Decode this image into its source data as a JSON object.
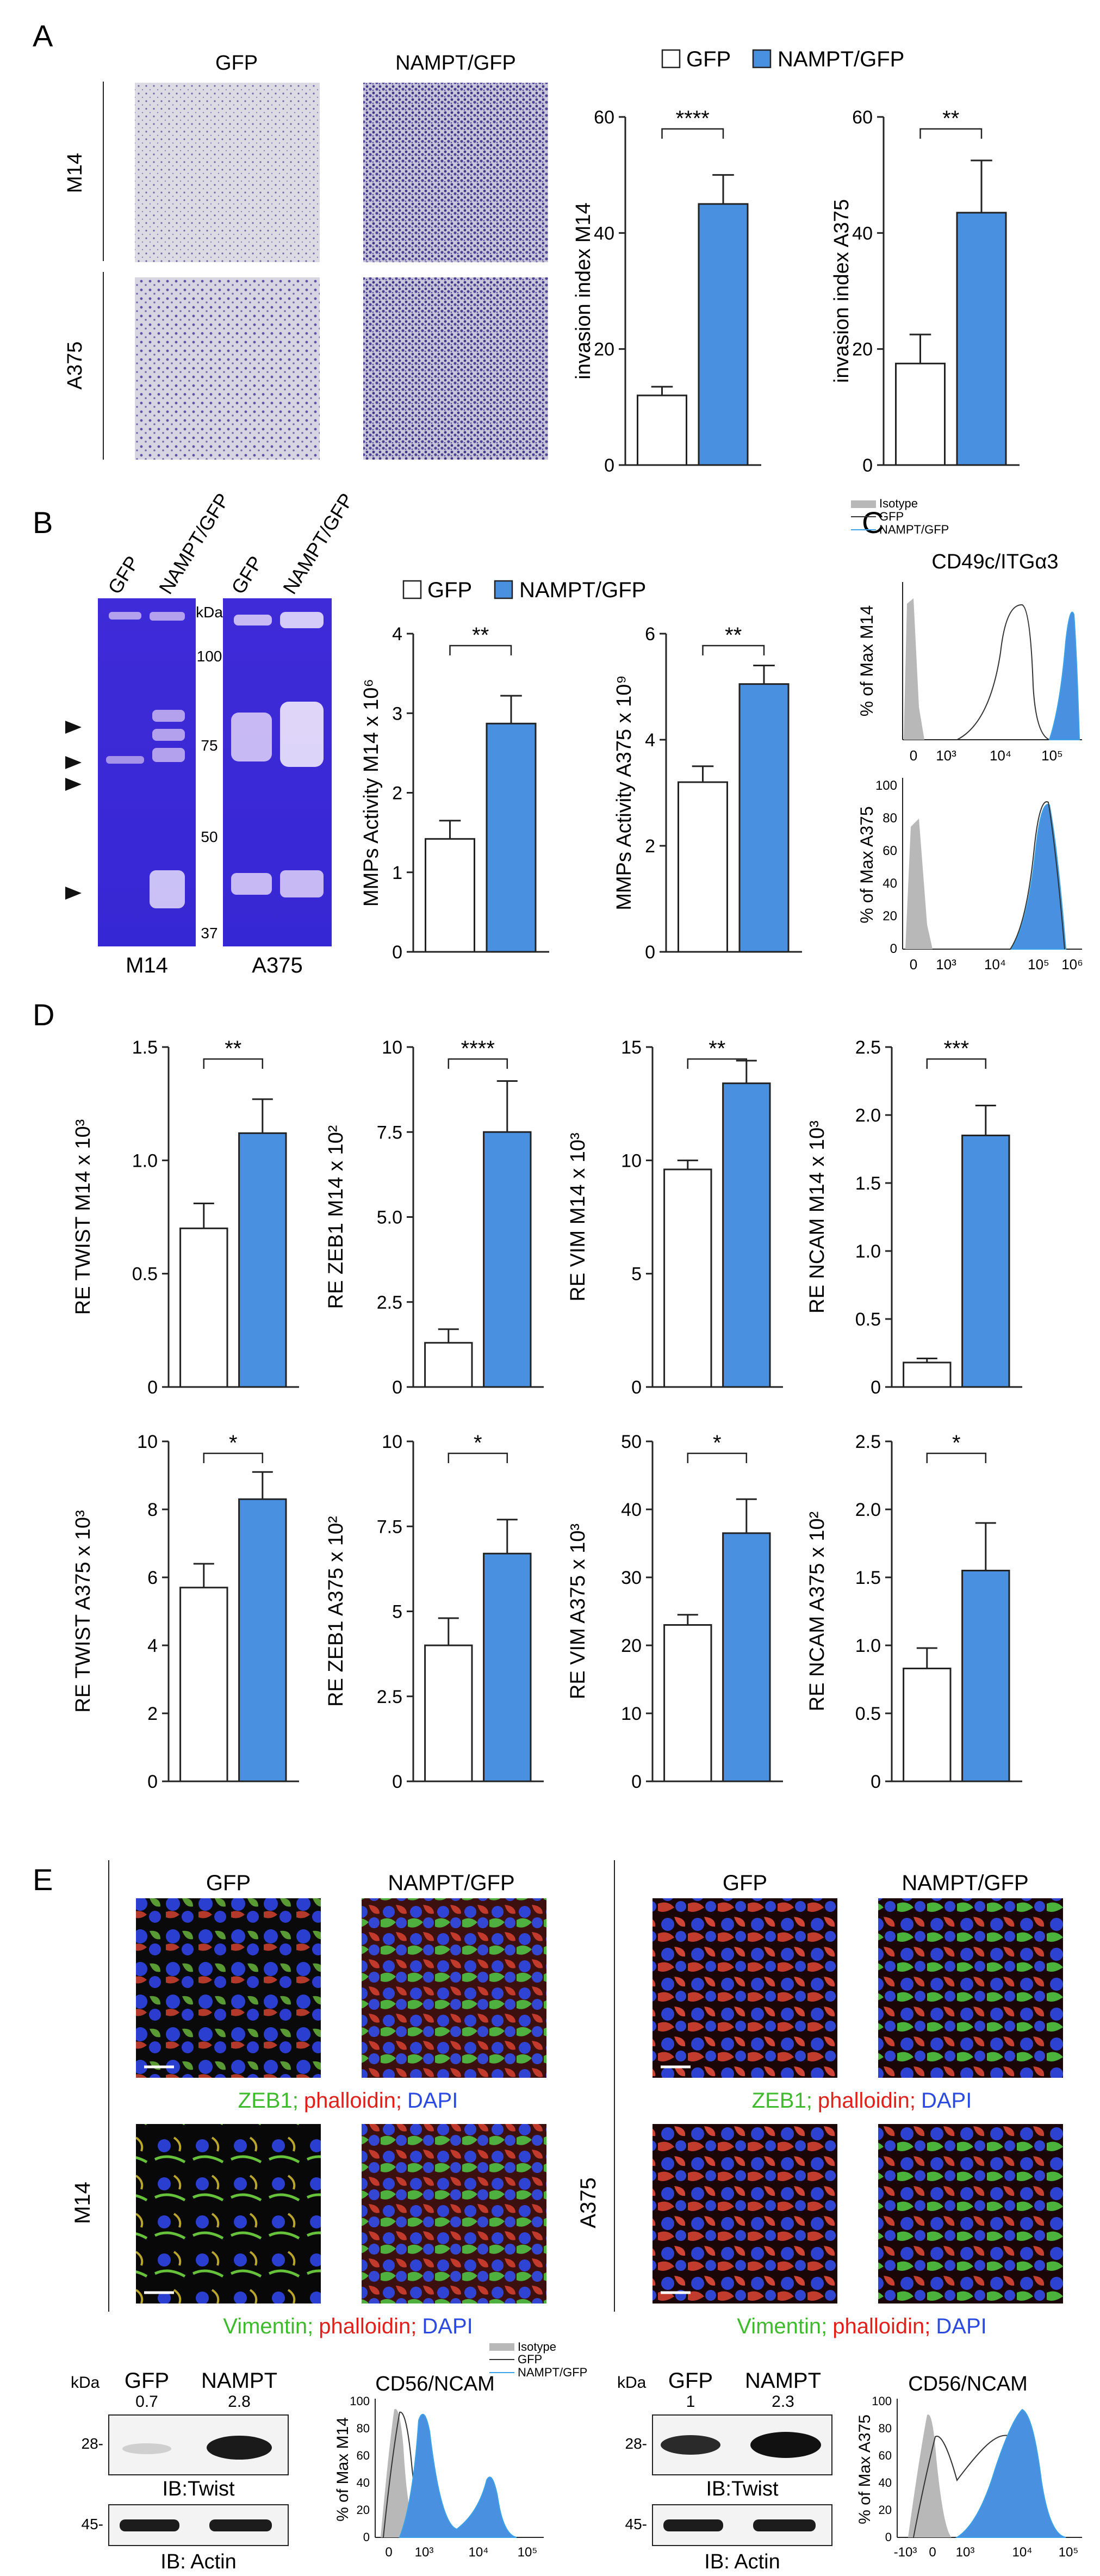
{
  "colors": {
    "gfp_fill": "#ffffff",
    "nampt_fill": "#4a90e0",
    "axis": "#222222",
    "isotype": "#b8b8b8",
    "gfp_line": "#333333",
    "nampt_line": "#3aa0e8",
    "gel": "#3a2fd6",
    "micro_m14_gfp": "#dcd9e2",
    "micro_nampt": "#5b4f9e"
  },
  "panels": {
    "A": "A",
    "B": "B",
    "C": "C",
    "D": "D",
    "E": "E"
  },
  "legend": {
    "gfp": "GFP",
    "nampt": "NAMPT/GFP",
    "isotype": "Isotype",
    "gfp_small": "GFP",
    "nampt_small": "NAMPT/GFP"
  },
  "micro_a": {
    "col_gfp": "GFP",
    "col_nampt": "NAMPT/GFP",
    "row_m14": "M14",
    "row_a375": "A375"
  },
  "gel": {
    "col_gfp": "GFP",
    "col_nampt": "NAMPT/GFP",
    "kda": "kDa",
    "markers": [
      "100",
      "75",
      "50",
      "37"
    ],
    "label_m14": "M14",
    "label_a375": "A375"
  },
  "flow_c": {
    "title": "CD49c/ITGα3",
    "ylabel_top": "% of Max M14",
    "ylabel_bottom": "% of Max A375",
    "yticks": [
      "0",
      "20",
      "40",
      "60",
      "80",
      "100"
    ],
    "xticks_top": [
      "0",
      "10³",
      "10⁴",
      "10⁵"
    ],
    "xticks_bottom": [
      "0",
      "10³",
      "10⁴",
      "10⁵",
      "10⁶"
    ]
  },
  "chart_data": [
    {
      "id": "a1",
      "type": "bar",
      "categories": [
        "GFP",
        "NAMPT/GFP"
      ],
      "values": [
        12,
        45
      ],
      "errors": [
        1.5,
        5
      ],
      "ylabel": "invasion index M14",
      "ylim": [
        0,
        60
      ],
      "yticks": [
        "0",
        "20",
        "40",
        "60"
      ],
      "sig": "****"
    },
    {
      "id": "a2",
      "type": "bar",
      "categories": [
        "GFP",
        "NAMPT/GFP"
      ],
      "values": [
        17.5,
        43.5
      ],
      "errors": [
        5,
        9
      ],
      "ylabel": "invasion index A375",
      "ylim": [
        0,
        60
      ],
      "yticks": [
        "0",
        "20",
        "40",
        "60"
      ],
      "sig": "**"
    },
    {
      "id": "b1",
      "type": "bar",
      "categories": [
        "GFP",
        "NAMPT/GFP"
      ],
      "values": [
        1.42,
        2.87
      ],
      "errors": [
        0.23,
        0.35
      ],
      "ylabel": "MMPs Activity M14  x 10⁶",
      "ylim": [
        0,
        4
      ],
      "yticks": [
        "0",
        "1",
        "2",
        "3",
        "4"
      ],
      "sig": "**"
    },
    {
      "id": "b2",
      "type": "bar",
      "categories": [
        "GFP",
        "NAMPT/GFP"
      ],
      "values": [
        3.2,
        5.05
      ],
      "errors": [
        0.3,
        0.35
      ],
      "ylabel": "MMPs Activity A375  x 10⁹",
      "ylim": [
        0,
        6
      ],
      "yticks": [
        "0",
        "2",
        "4",
        "6"
      ],
      "sig": "**"
    },
    {
      "id": "d1",
      "type": "bar",
      "categories": [
        "GFP",
        "NAMPT/GFP"
      ],
      "values": [
        0.7,
        1.12
      ],
      "errors": [
        0.11,
        0.15
      ],
      "ylabel": "RE TWIST M14 x 10³",
      "ylim": [
        0,
        1.5
      ],
      "yticks": [
        "0",
        "0.5",
        "1.0",
        "1.5"
      ],
      "sig": "**"
    },
    {
      "id": "d2",
      "type": "bar",
      "categories": [
        "GFP",
        "NAMPT/GFP"
      ],
      "values": [
        1.3,
        7.5
      ],
      "errors": [
        0.4,
        1.5
      ],
      "ylabel": "RE ZEB1 M14 x 10²",
      "ylim": [
        0,
        10
      ],
      "yticks": [
        "0",
        "2.5",
        "5.0",
        "7.5",
        "10"
      ],
      "sig": "****"
    },
    {
      "id": "d3",
      "type": "bar",
      "categories": [
        "GFP",
        "NAMPT/GFP"
      ],
      "values": [
        9.6,
        13.4
      ],
      "errors": [
        0.4,
        1.0
      ],
      "ylabel": "RE VIM M14 x 10³",
      "ylim": [
        0,
        15
      ],
      "yticks": [
        "0",
        "5",
        "10",
        "15"
      ],
      "sig": "**"
    },
    {
      "id": "d4",
      "type": "bar",
      "categories": [
        "GFP",
        "NAMPT/GFP"
      ],
      "values": [
        0.18,
        1.85
      ],
      "errors": [
        0.03,
        0.22
      ],
      "ylabel": "RE NCAM M14 x 10³",
      "ylim": [
        0,
        2.5
      ],
      "yticks": [
        "0",
        "0.5",
        "1.0",
        "1.5",
        "2.0",
        "2.5"
      ],
      "sig": "***"
    },
    {
      "id": "d5",
      "type": "bar",
      "categories": [
        "GFP",
        "NAMPT/GFP"
      ],
      "values": [
        5.7,
        8.3
      ],
      "errors": [
        0.7,
        0.8
      ],
      "ylabel": "RE TWIST A375 x 10³",
      "ylim": [
        0,
        10
      ],
      "yticks": [
        "0",
        "2",
        "4",
        "6",
        "8",
        "10"
      ],
      "sig": "*"
    },
    {
      "id": "d6",
      "type": "bar",
      "categories": [
        "GFP",
        "NAMPT/GFP"
      ],
      "values": [
        4.0,
        6.7
      ],
      "errors": [
        0.8,
        1.0
      ],
      "ylabel": "RE ZEB1 A375 x 10²",
      "ylim": [
        0,
        10
      ],
      "yticks": [
        "0",
        "2.5",
        "5",
        "7.5",
        "10"
      ],
      "sig": "*"
    },
    {
      "id": "d7",
      "type": "bar",
      "categories": [
        "GFP",
        "NAMPT/GFP"
      ],
      "values": [
        23,
        36.5
      ],
      "errors": [
        1.5,
        5
      ],
      "ylabel": "RE VIM A375 x 10³",
      "ylim": [
        0,
        50
      ],
      "yticks": [
        "0",
        "10",
        "20",
        "30",
        "40",
        "50"
      ],
      "sig": "*"
    },
    {
      "id": "d8",
      "type": "bar",
      "categories": [
        "GFP",
        "NAMPT/GFP"
      ],
      "values": [
        0.83,
        1.55
      ],
      "errors": [
        0.15,
        0.35
      ],
      "ylabel": "RE NCAM A375 x 10²",
      "ylim": [
        0,
        2.5
      ],
      "yticks": [
        "0",
        "0.5",
        "1.0",
        "1.5",
        "2.0",
        "2.5"
      ],
      "sig": "*"
    }
  ],
  "panel_e": {
    "col_gfp": "GFP",
    "col_nampt": "NAMPT/GFP",
    "cap_zeb1": "ZEB1;",
    "cap_vim": "Vimentin;",
    "cap_phal": "phalloidin;",
    "cap_dapi": "DAPI",
    "side_m14": "M14",
    "side_a375": "A375",
    "wb_kda": "kDa",
    "wb_gfp": "GFP",
    "wb_nampt": "NAMPT",
    "wb_m14_vals": [
      "0.7",
      "2.8"
    ],
    "wb_a375_vals": [
      "1",
      "2.3"
    ],
    "wb_twist_mw": "28-",
    "wb_actin_mw": "45-",
    "ib_twist": "IB:Twist",
    "ib_actin": "IB: Actin",
    "ncam_title": "CD56/NCAM",
    "ncam_ylabel_m14": "% of Max M14",
    "ncam_ylabel_a375": "% of Max A375",
    "ncam_yticks": [
      "0",
      "20",
      "40",
      "60",
      "80",
      "100"
    ],
    "ncam_xticks_m14": [
      "0",
      "10³",
      "10⁴",
      "10⁵"
    ],
    "ncam_xticks_a375": [
      "-10³",
      "0",
      "10³",
      "10⁴",
      "10⁵"
    ]
  }
}
